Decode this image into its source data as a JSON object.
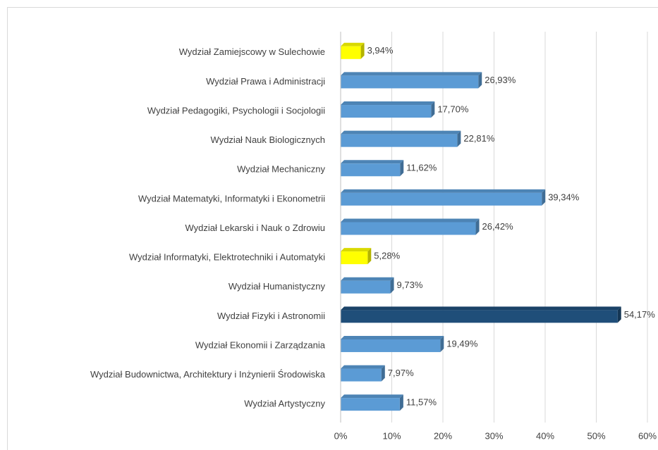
{
  "chart_data": {
    "type": "bar",
    "orientation": "horizontal",
    "categories": [
      "Wydział Zamiejscowy w Sulechowie",
      "Wydział Prawa i Administracji",
      "Wydział Pedagogiki, Psychologii i Socjologii",
      "Wydział Nauk Biologicznych",
      "Wydział Mechaniczny",
      "Wydział Matematyki, Informatyki i Ekonometrii",
      "Wydział Lekarski i Nauk o Zdrowiu",
      "Wydział Informatyki, Elektrotechniki i Automatyki",
      "Wydział Humanistyczny",
      "Wydział Fizyki i Astronomii",
      "Wydział Ekonomii i Zarządzania",
      "Wydział Budownictwa, Architektury i Inżynierii Środowiska",
      "Wydział Artystyczny"
    ],
    "values": [
      3.94,
      26.93,
      17.7,
      22.81,
      11.62,
      39.34,
      26.42,
      5.28,
      9.73,
      54.17,
      19.49,
      7.97,
      11.57
    ],
    "value_labels": [
      "3,94%",
      "26,93%",
      "17,70%",
      "22,81%",
      "11,62%",
      "39,34%",
      "26,42%",
      "5,28%",
      "9,73%",
      "54,17%",
      "19,49%",
      "7,97%",
      "11,57%"
    ],
    "colors": [
      "#ffff00",
      "#5b9bd5",
      "#5b9bd5",
      "#5b9bd5",
      "#5b9bd5",
      "#5b9bd5",
      "#5b9bd5",
      "#ffff00",
      "#5b9bd5",
      "#1f4e79",
      "#5b9bd5",
      "#5b9bd5",
      "#5b9bd5"
    ],
    "xlim": [
      0,
      60
    ],
    "xticks": [
      {
        "value": 0,
        "label": "0%"
      },
      {
        "value": 10,
        "label": "10%"
      },
      {
        "value": 20,
        "label": "20%"
      },
      {
        "value": 30,
        "label": "30%"
      },
      {
        "value": 40,
        "label": "40%"
      },
      {
        "value": 50,
        "label": "50%"
      },
      {
        "value": 60,
        "label": "60%"
      }
    ],
    "grid": true
  }
}
